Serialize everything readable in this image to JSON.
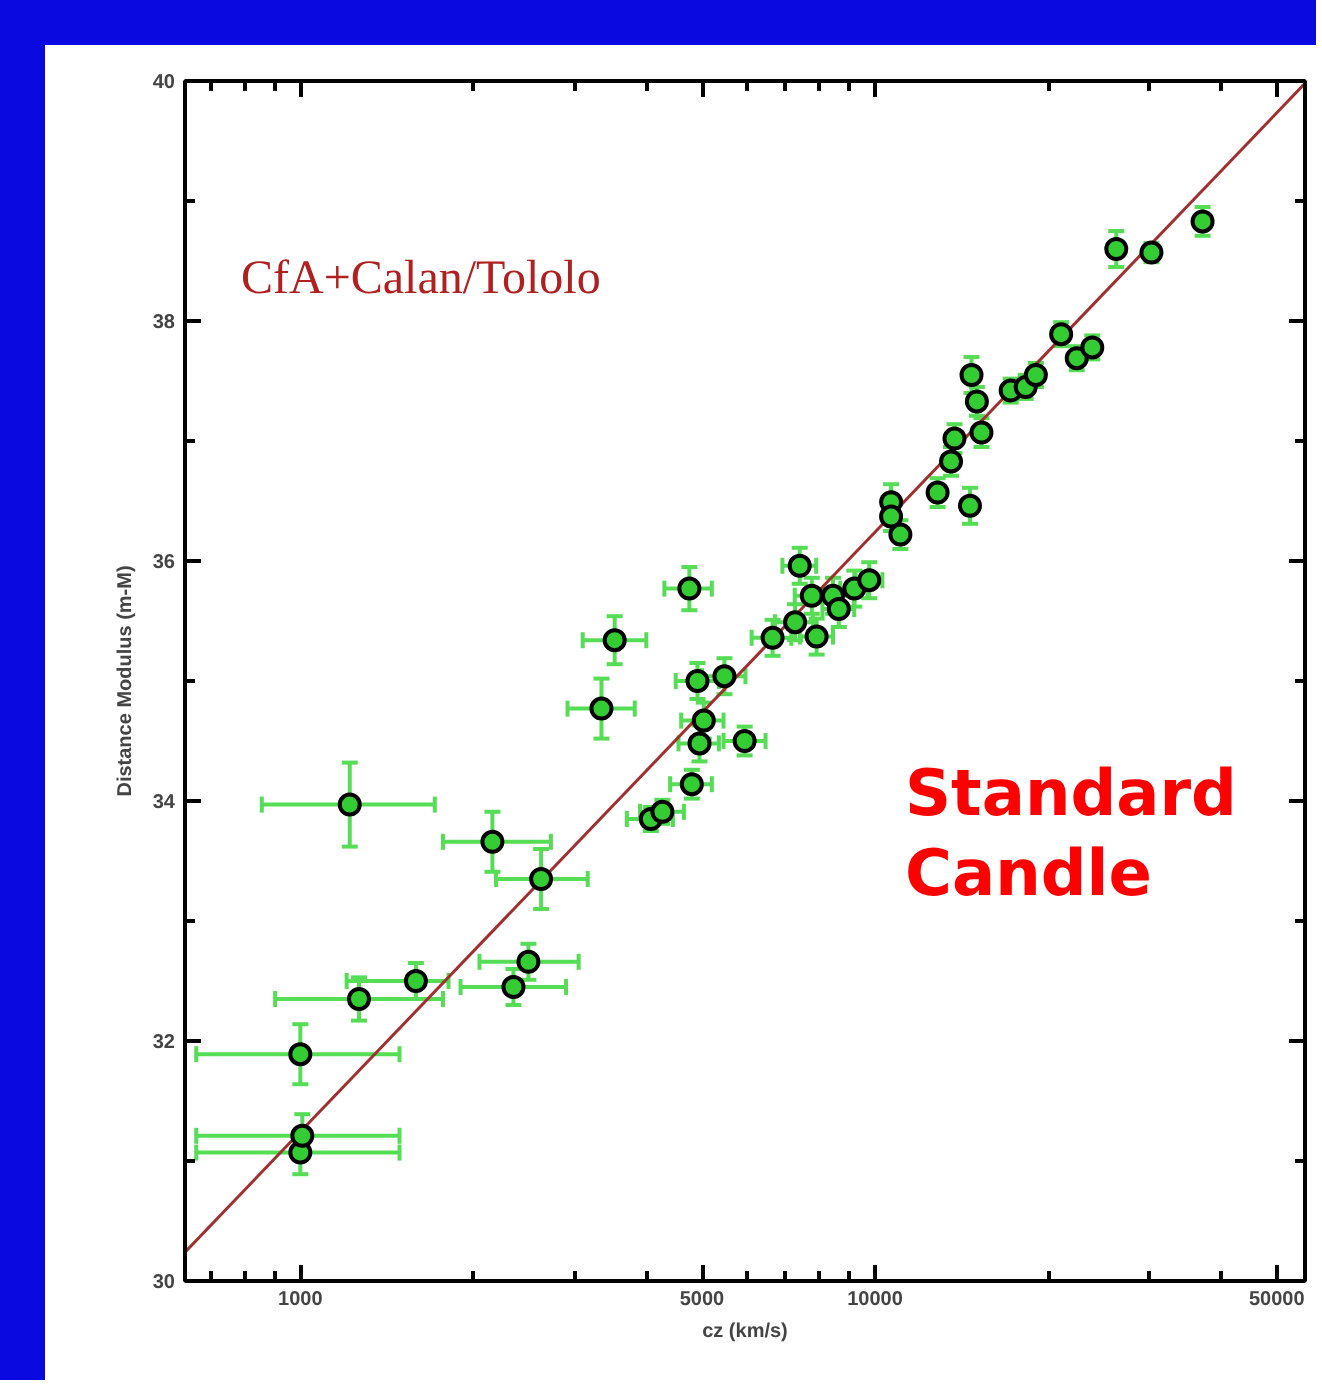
{
  "chart_data": {
    "type": "scatter",
    "xlabel": "cz (km/s)",
    "ylabel": "Distance Modulus (m-M)",
    "annotations": [
      "CfA+Calan/Tololo",
      "Standard\nCandle"
    ],
    "log": "x",
    "grid": false,
    "marker": "circle",
    "xlim": [
      630,
      56000
    ],
    "ylim": [
      30,
      40
    ],
    "xticks": [
      {
        "value": 700,
        "label": null
      },
      {
        "value": 800,
        "label": null
      },
      {
        "value": 900,
        "label": null
      },
      1000,
      {
        "value": 2000,
        "label": null
      },
      {
        "value": 3000,
        "label": null
      },
      {
        "value": 4000,
        "label": null
      },
      5000,
      {
        "value": 6000,
        "label": null
      },
      {
        "value": 7000,
        "label": null
      },
      {
        "value": 8000,
        "label": null
      },
      {
        "value": 9000,
        "label": null
      },
      10000,
      {
        "value": 20000,
        "label": null
      },
      {
        "value": 30000,
        "label": null
      },
      {
        "value": 40000,
        "label": null
      },
      50000
    ],
    "yticks": [
      30,
      {
        "value": 31,
        "label": null
      },
      32,
      {
        "value": 33,
        "label": null
      },
      34,
      {
        "value": 35,
        "label": null
      },
      36,
      {
        "value": 37,
        "label": null
      },
      38,
      {
        "value": 39,
        "label": null
      },
      40
    ],
    "series": [
      {
        "type": "line",
        "color": "#a03030",
        "line_style": "solid",
        "marker": "none",
        "x": [
          630,
          56000
        ],
        "values": [
          30.24,
          39.98
        ]
      },
      {
        "color": "#33cc33",
        "x": [
          1000,
          1008,
          1000,
          1265,
          1589,
          2349,
          2494,
          2624,
          2159,
          1219,
          3342,
          3524,
          4073,
          4266,
          4800,
          4950,
          5036,
          4910,
          5470,
          5931,
          4753,
          6634,
          7260,
          7914,
          7396,
          7762,
          8450,
          8650,
          9205,
          9770,
          10665,
          10665,
          11070,
          12850,
          14630,
          13560,
          13750,
          14720,
          15040,
          15320,
          17220,
          18290,
          19050,
          21080,
          22440,
          23880,
          26290,
          30270,
          37150
        ],
        "values": [
          31.07,
          31.21,
          31.89,
          32.35,
          32.5,
          32.45,
          32.66,
          33.35,
          33.66,
          33.97,
          34.77,
          35.34,
          33.85,
          33.91,
          34.14,
          34.48,
          34.67,
          35.0,
          35.04,
          34.5,
          35.77,
          35.36,
          35.49,
          35.37,
          35.96,
          35.71,
          35.71,
          35.6,
          35.77,
          35.84,
          36.49,
          36.37,
          36.22,
          36.57,
          36.46,
          36.83,
          37.02,
          37.55,
          37.33,
          37.07,
          37.42,
          37.45,
          37.55,
          37.89,
          37.69,
          37.78,
          38.6,
          38.57,
          38.83
        ],
        "errors": [
          0.18,
          0.18,
          0.25,
          0.18,
          0.15,
          0.15,
          0.15,
          0.25,
          0.25,
          0.35,
          0.25,
          0.2,
          0.1,
          0.1,
          0.12,
          0.15,
          0.15,
          0.15,
          0.15,
          0.12,
          0.18,
          0.15,
          0.15,
          0.15,
          0.15,
          0.15,
          0.15,
          0.15,
          0.15,
          0.15,
          0.15,
          0.12,
          0.12,
          0.12,
          0.15,
          0.12,
          0.12,
          0.15,
          0.12,
          0.12,
          0.1,
          0.1,
          0.1,
          0.1,
          0.1,
          0.1,
          0.15,
          0.08,
          0.12
        ],
        "xerrors": [
          [
            659,
            1488
          ],
          [
            659,
            1488
          ],
          [
            659,
            1488
          ],
          [
            904,
            1771
          ],
          [
            1204,
            1811
          ],
          [
            1900,
            2900
          ],
          [
            2050,
            3050
          ],
          [
            2190,
            3163
          ],
          [
            1771,
            2729
          ],
          [
            857,
            1714
          ],
          [
            2917,
            3819
          ],
          [
            3100,
            4000
          ],
          [
            3700,
            4450
          ],
          [
            3900,
            4650
          ],
          [
            4400,
            5200
          ],
          [
            4550,
            5350
          ],
          [
            4600,
            5450
          ],
          [
            4500,
            5350
          ],
          [
            5000,
            5950
          ],
          [
            5450,
            6450
          ],
          [
            4300,
            5200
          ],
          [
            6100,
            7150
          ],
          [
            6700,
            7800
          ],
          [
            7400,
            8450
          ],
          [
            6900,
            7900
          ],
          [
            7250,
            8300
          ],
          [
            8100,
            9200
          ],
          [
            8100,
            9200
          ],
          [
            8700,
            9700
          ],
          [
            9250,
            10300
          ],
          null,
          null,
          null,
          null,
          null,
          null,
          null,
          null,
          null,
          null,
          null,
          null,
          null,
          null,
          null,
          null,
          null,
          null,
          null
        ]
      }
    ]
  }
}
